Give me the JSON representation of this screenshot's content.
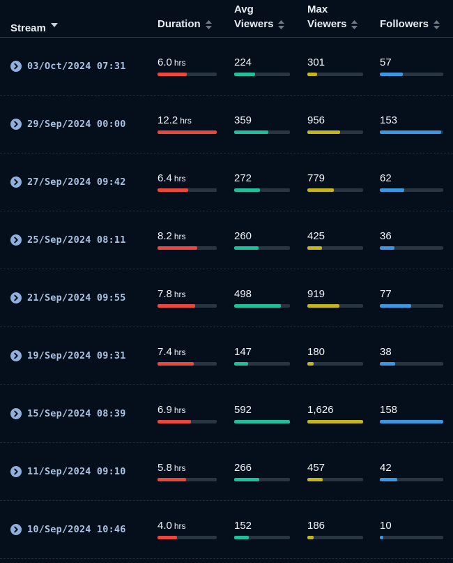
{
  "header": {
    "stream_label": "Stream",
    "duration_label": "Duration",
    "avg_label": "Avg\nViewers",
    "max_label": "Max\nViewers",
    "followers_label": "Followers"
  },
  "colors": {
    "duration": "#e8493c",
    "avg": "#1fbf9c",
    "max": "#c4b51c",
    "followers": "#3a97e0"
  },
  "duration_unit": "hrs",
  "rows": [
    {
      "date": "03/Oct/2024 07:31",
      "duration": "6.0",
      "duration_frac": 0.49,
      "avg": "224",
      "avg_frac": 0.38,
      "max": "301",
      "max_frac": 0.18,
      "followers": "57",
      "followers_frac": 0.36
    },
    {
      "date": "29/Sep/2024 00:00",
      "duration": "12.2",
      "duration_frac": 1.0,
      "avg": "359",
      "avg_frac": 0.61,
      "max": "956",
      "max_frac": 0.59,
      "followers": "153",
      "followers_frac": 0.97
    },
    {
      "date": "27/Sep/2024 09:42",
      "duration": "6.4",
      "duration_frac": 0.52,
      "avg": "272",
      "avg_frac": 0.46,
      "max": "779",
      "max_frac": 0.48,
      "followers": "62",
      "followers_frac": 0.39
    },
    {
      "date": "25/Sep/2024 08:11",
      "duration": "8.2",
      "duration_frac": 0.67,
      "avg": "260",
      "avg_frac": 0.44,
      "max": "425",
      "max_frac": 0.26,
      "followers": "36",
      "followers_frac": 0.23
    },
    {
      "date": "21/Sep/2024 09:55",
      "duration": "7.8",
      "duration_frac": 0.64,
      "avg": "498",
      "avg_frac": 0.84,
      "max": "919",
      "max_frac": 0.57,
      "followers": "77",
      "followers_frac": 0.49
    },
    {
      "date": "19/Sep/2024 09:31",
      "duration": "7.4",
      "duration_frac": 0.61,
      "avg": "147",
      "avg_frac": 0.25,
      "max": "180",
      "max_frac": 0.11,
      "followers": "38",
      "followers_frac": 0.24
    },
    {
      "date": "15/Sep/2024 08:39",
      "duration": "6.9",
      "duration_frac": 0.57,
      "avg": "592",
      "avg_frac": 1.0,
      "max": "1,626",
      "max_frac": 1.0,
      "followers": "158",
      "followers_frac": 1.0
    },
    {
      "date": "11/Sep/2024 09:10",
      "duration": "5.8",
      "duration_frac": 0.48,
      "avg": "266",
      "avg_frac": 0.45,
      "max": "457",
      "max_frac": 0.28,
      "followers": "42",
      "followers_frac": 0.27
    },
    {
      "date": "10/Sep/2024 10:46",
      "duration": "4.0",
      "duration_frac": 0.33,
      "avg": "152",
      "avg_frac": 0.26,
      "max": "186",
      "max_frac": 0.11,
      "followers": "10",
      "followers_frac": 0.06
    }
  ]
}
